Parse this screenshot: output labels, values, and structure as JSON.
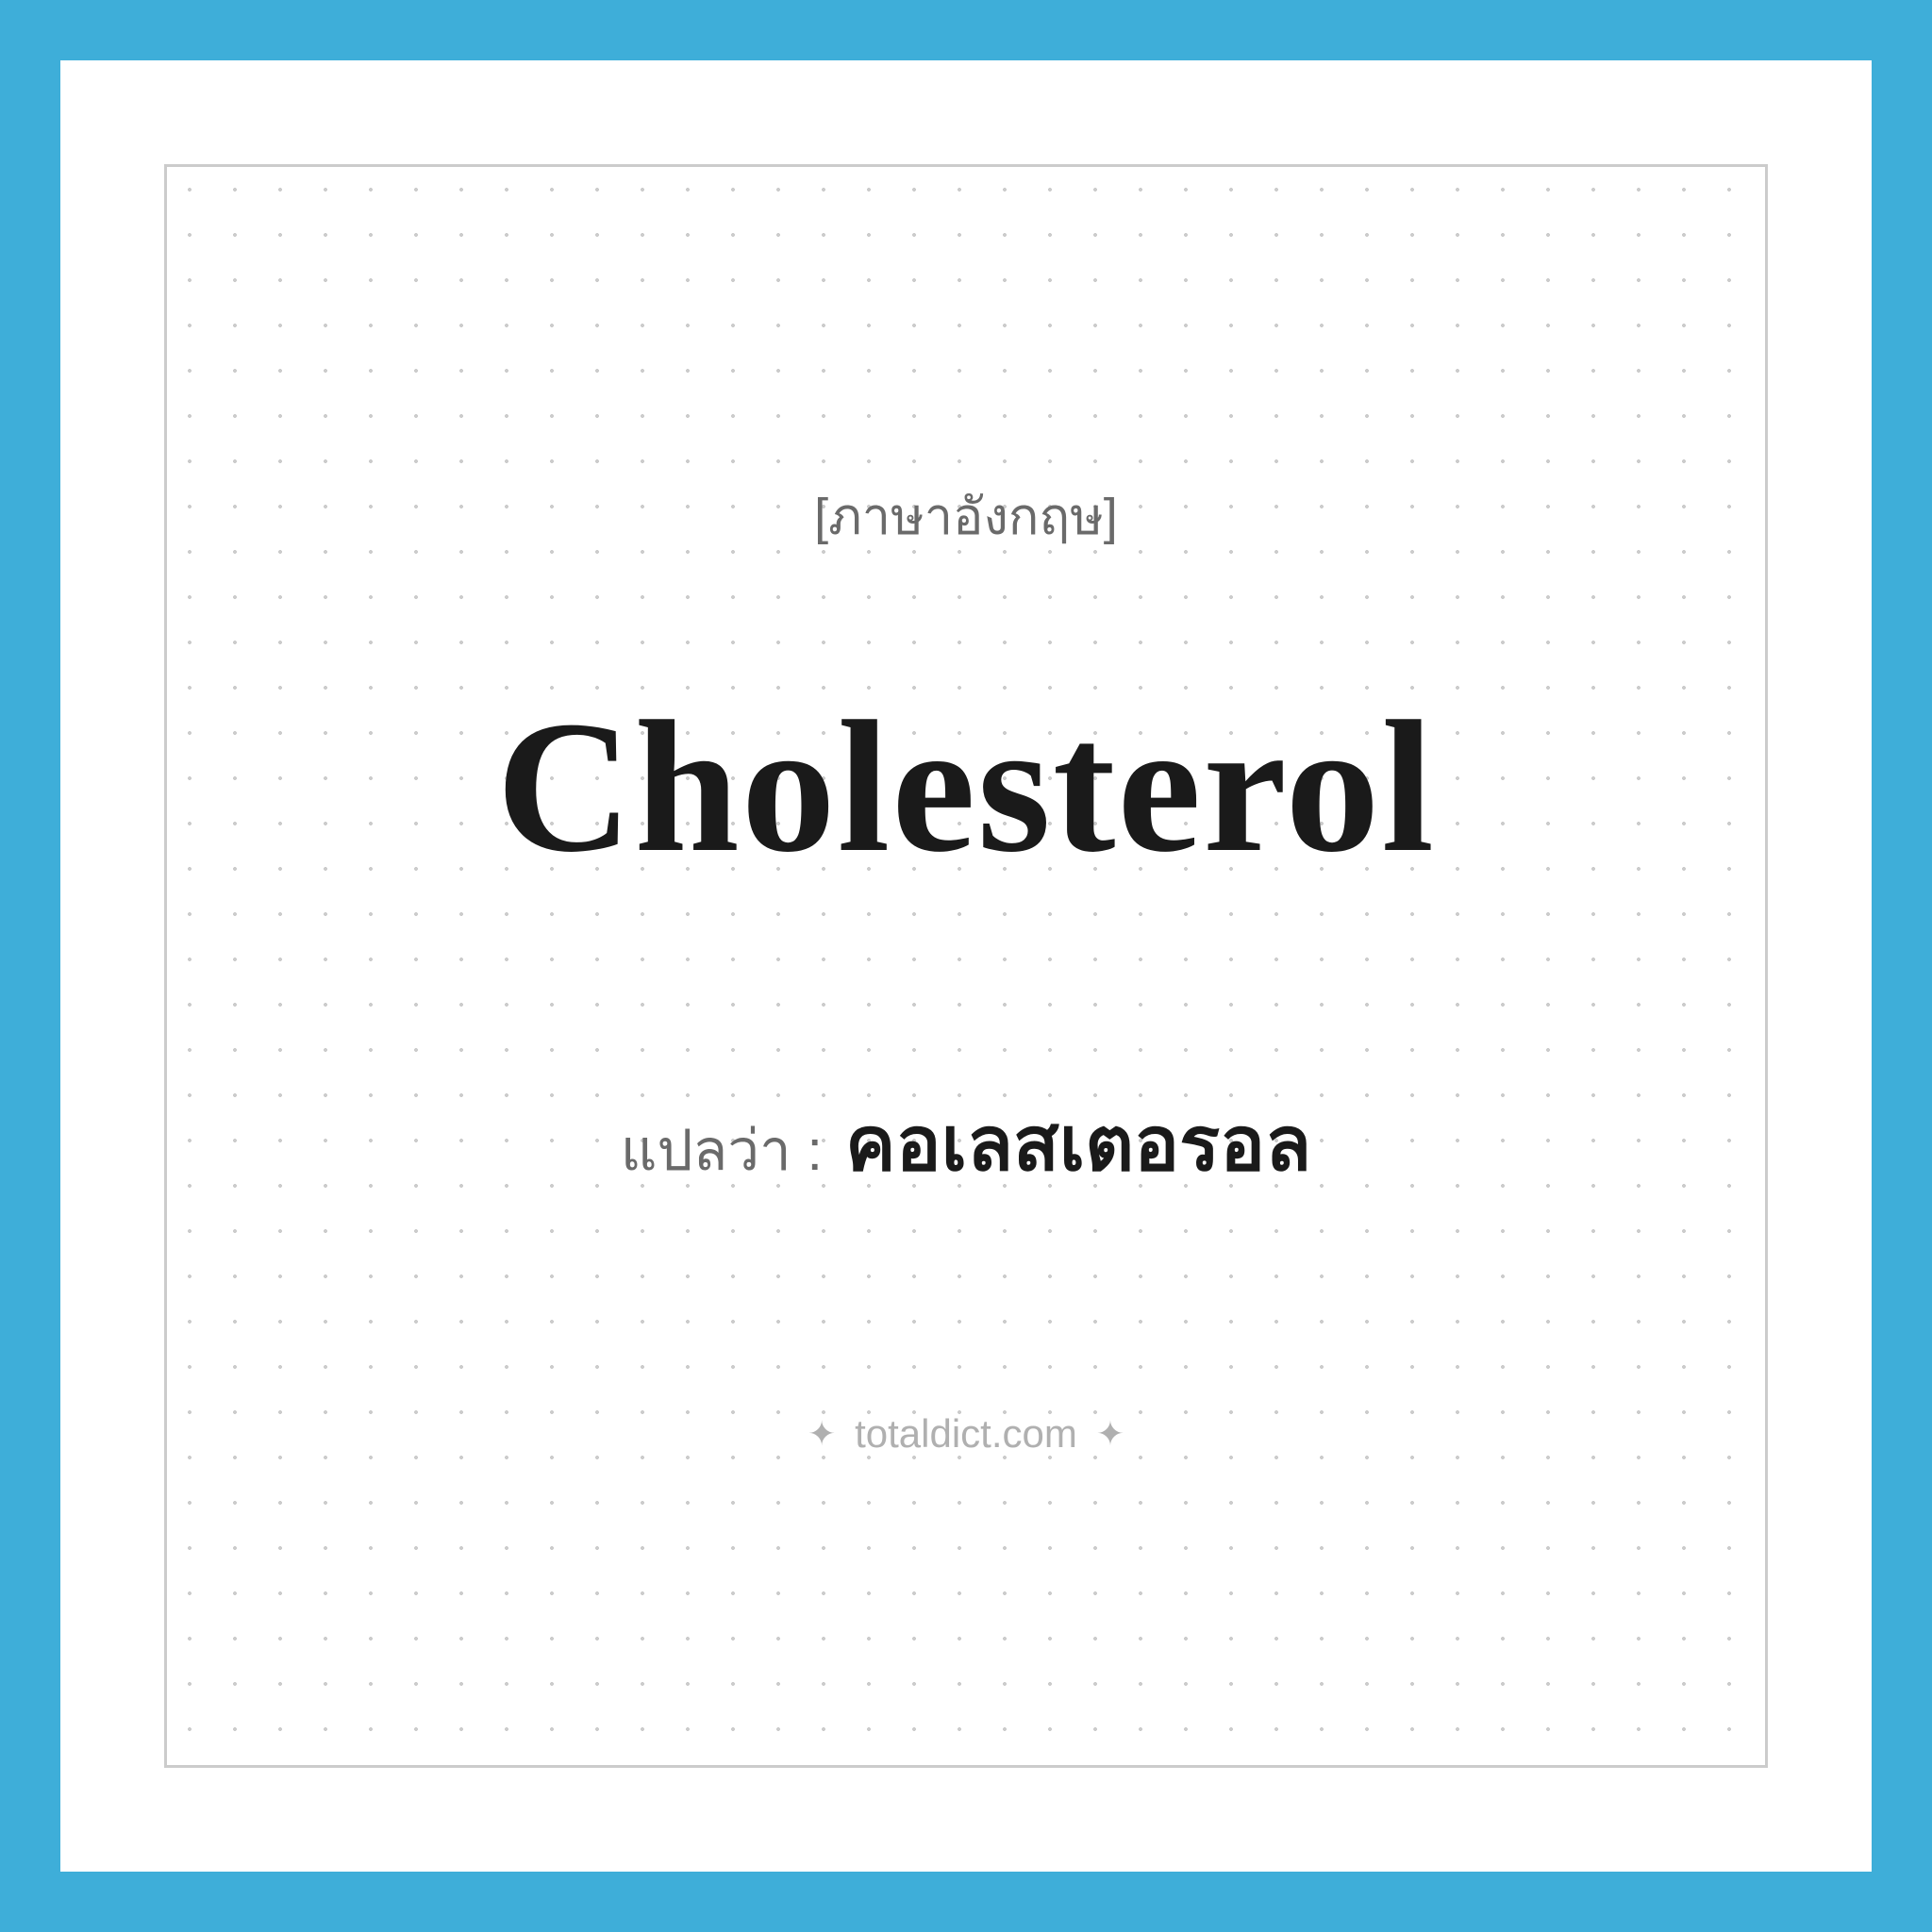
{
  "card": {
    "language_label": "[ภาษาอังกฤษ]",
    "main_word": "Cholesterol",
    "translation_label": "แปลว่า :",
    "translation_text": "คอเลสเตอรอล",
    "brand": "totaldict.com",
    "sparkle_left": "✦",
    "sparkle_right": "✦"
  },
  "styling": {
    "outer_background": "#3eaed9",
    "card_background": "#ffffff",
    "dot_color": "#cccccc",
    "inner_border_color": "#cccccc",
    "dot_spacing": 48,
    "language_label_fontsize": 54,
    "language_label_color": "#6a6a6a",
    "main_word_fontsize": 200,
    "main_word_color": "#1a1a1a",
    "translation_label_fontsize": 60,
    "translation_label_color": "#6a6a6a",
    "translation_text_fontsize": 80,
    "translation_text_color": "#1a1a1a",
    "brand_fontsize": 42,
    "brand_color": "#b0b0b0"
  }
}
